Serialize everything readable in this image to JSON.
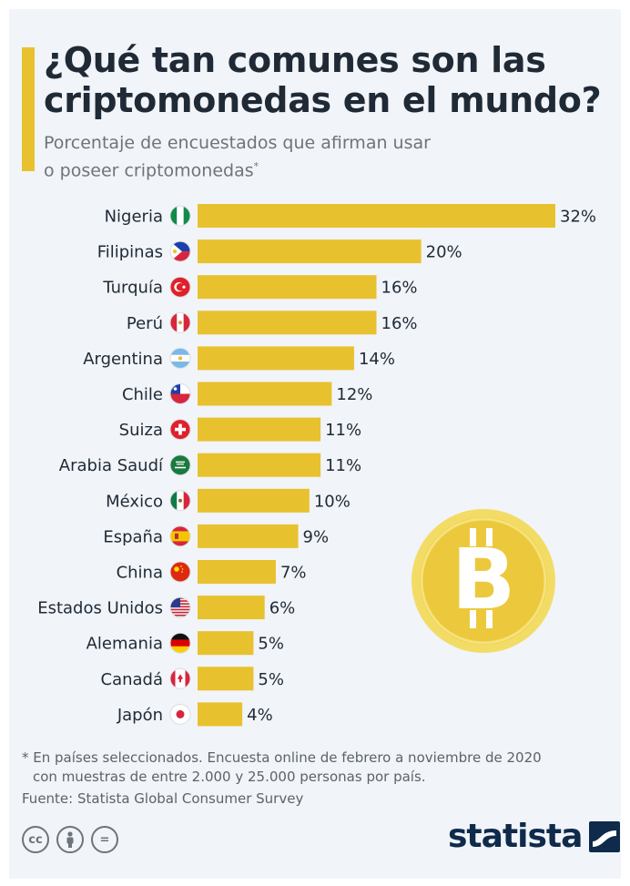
{
  "header": {
    "title_line1": "¿Qué tan comunes son las",
    "title_line2": "criptomonedas en el mundo?",
    "subtitle_line1": "Porcentaje de encuestados que afirman usar",
    "subtitle_line2": "o poseer criptomonedas",
    "subtitle_mark": "*"
  },
  "chart_data": {
    "type": "bar",
    "orientation": "horizontal",
    "categories": [
      "Nigeria",
      "Filipinas",
      "Turquía",
      "Perú",
      "Argentina",
      "Chile",
      "Suiza",
      "Arabia Saudí",
      "México",
      "España",
      "China",
      "Estados Unidos",
      "Alemania",
      "Canadá",
      "Japón"
    ],
    "values": [
      32,
      20,
      16,
      16,
      14,
      12,
      11,
      11,
      10,
      9,
      7,
      6,
      5,
      5,
      4
    ],
    "value_labels": [
      "32%",
      "20%",
      "16%",
      "16%",
      "14%",
      "12%",
      "11%",
      "11%",
      "10%",
      "9%",
      "7%",
      "6%",
      "5%",
      "5%",
      "4%"
    ],
    "flags": [
      "nigeria-flag-icon",
      "philippines-flag-icon",
      "turkey-flag-icon",
      "peru-flag-icon",
      "argentina-flag-icon",
      "chile-flag-icon",
      "switzerland-flag-icon",
      "saudi-arabia-flag-icon",
      "mexico-flag-icon",
      "spain-flag-icon",
      "china-flag-icon",
      "usa-flag-icon",
      "germany-flag-icon",
      "canada-flag-icon",
      "japan-flag-icon"
    ],
    "xlim": [
      0,
      32
    ],
    "grid": false,
    "bar_color": "#e8c12f"
  },
  "decoration": {
    "icon": "bitcoin-coin-icon",
    "symbol": "B"
  },
  "footer": {
    "note_line1": "* En países seleccionados. Encuesta online de febrero a noviembre de 2020",
    "note_line2": "con muestras de entre 2.000 y 25.000 personas por país.",
    "source": "Fuente: Statista Global Consumer Survey",
    "license_icons": [
      "cc-icon",
      "by-icon",
      "nd-icon"
    ],
    "cc_label": "cc",
    "nd_label": "=",
    "brand": "statista"
  },
  "colors": {
    "accent": "#e8c12f",
    "text": "#1f2a36",
    "muted": "#6d747b",
    "brand": "#0f2a4a"
  }
}
